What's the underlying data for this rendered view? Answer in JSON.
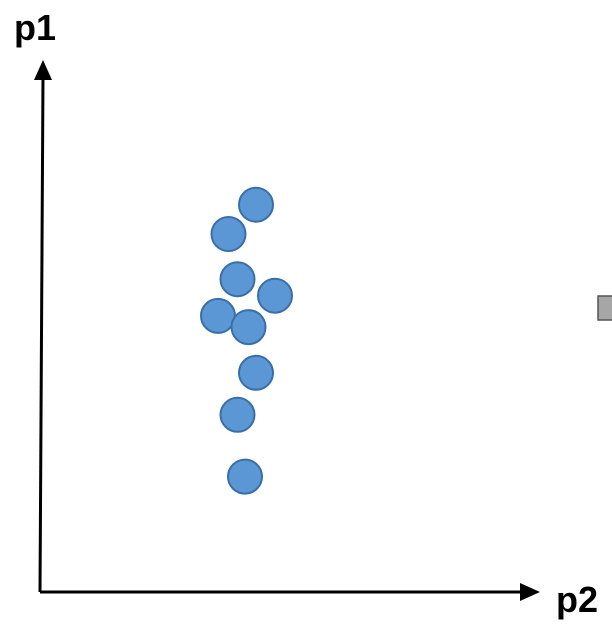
{
  "chart_data": {
    "type": "scatter",
    "xlabel": "p2",
    "ylabel": "p1",
    "xlim": [
      0,
      10
    ],
    "ylim": [
      0,
      10
    ],
    "grid": false,
    "legend": "none",
    "ticks": false,
    "colors": {
      "point_fill": "#5b96d5",
      "point_stroke": "#3a6ea8",
      "axis": "#000000",
      "edge_marker_fill": "#a6a6a6",
      "edge_marker_stroke": "#555555"
    },
    "series": [
      {
        "points": [
          {
            "x": 4.32,
            "y": 7.28
          },
          {
            "x": 3.77,
            "y": 6.73
          },
          {
            "x": 3.95,
            "y": 5.88
          },
          {
            "x": 4.7,
            "y": 5.57
          },
          {
            "x": 3.56,
            "y": 5.19
          },
          {
            "x": 4.17,
            "y": 4.98
          },
          {
            "x": 4.32,
            "y": 4.12
          },
          {
            "x": 3.95,
            "y": 3.33
          },
          {
            "x": 4.1,
            "y": 2.17
          }
        ]
      }
    ]
  }
}
